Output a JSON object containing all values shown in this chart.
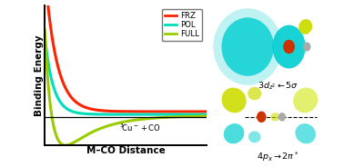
{
  "xlabel": "M–CO Distance",
  "ylabel": "Binding Energy",
  "legend_labels": [
    "FRZ",
    "POL",
    "FULL"
  ],
  "frz_color": "#FF2200",
  "pol_color": "#00DDBB",
  "full_color": "#99CC00",
  "label_3dz2": "$3d_{z^2} \\leftarrow 5\\sigma$",
  "label_4px": "$4p_x \\rightarrow 2\\pi^*$",
  "label_asymptote": "$^3\\!\\mathrm{Cu}^- + \\mathrm{CO}$",
  "bg_color": "#FFFFFF",
  "line_width": 2.2
}
